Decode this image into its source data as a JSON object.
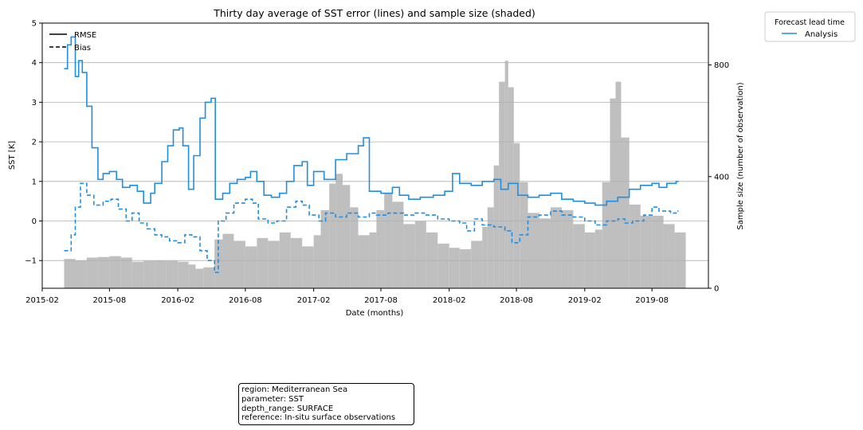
{
  "chart_data": {
    "type": "line",
    "title": "Thirty day average of SST error (lines) and sample size (shaded)",
    "xlabel": "Date (months)",
    "ylabel": "SST [K]",
    "y2label": "Sample size (number of observation)",
    "ylim": [
      -1.7,
      5.0
    ],
    "y2lim": [
      0,
      950
    ],
    "xlim": [
      "2015-02-01",
      "2019-12-31"
    ],
    "x_ticks": [
      "2015-02",
      "2015-08",
      "2016-02",
      "2016-08",
      "2017-02",
      "2017-08",
      "2018-02",
      "2018-08",
      "2019-02",
      "2019-08"
    ],
    "y_ticks": [
      "5",
      "4",
      "3",
      "2",
      "1",
      "0",
      "−1"
    ],
    "y2_ticks": [
      "800",
      "400",
      "0"
    ],
    "grid": "horizontal",
    "style_legend": [
      "RMSE",
      "Bias"
    ],
    "color_legend": {
      "title": "Forecast lead time",
      "entries": [
        "Analysis"
      ],
      "placement": "outside-top-right"
    },
    "colors": {
      "line": "#1f8fe6",
      "bars": "#bfbfbf",
      "grid": "#b0b0b0"
    },
    "series": [
      {
        "name": "RMSE",
        "legend_group": "Analysis",
        "style": "solid",
        "points": [
          [
            "2015-04-01",
            3.85
          ],
          [
            "2015-04-10",
            4.45
          ],
          [
            "2015-04-20",
            4.65
          ],
          [
            "2015-05-01",
            3.65
          ],
          [
            "2015-05-10",
            4.05
          ],
          [
            "2015-05-20",
            3.75
          ],
          [
            "2015-06-01",
            2.9
          ],
          [
            "2015-06-15",
            1.85
          ],
          [
            "2015-07-01",
            1.05
          ],
          [
            "2015-07-15",
            1.2
          ],
          [
            "2015-08-01",
            1.25
          ],
          [
            "2015-08-20",
            1.05
          ],
          [
            "2015-09-05",
            0.85
          ],
          [
            "2015-09-25",
            0.9
          ],
          [
            "2015-10-15",
            0.75
          ],
          [
            "2015-11-01",
            0.45
          ],
          [
            "2015-11-20",
            0.7
          ],
          [
            "2015-12-01",
            0.95
          ],
          [
            "2015-12-20",
            1.5
          ],
          [
            "2016-01-05",
            1.9
          ],
          [
            "2016-01-20",
            2.3
          ],
          [
            "2016-02-05",
            2.35
          ],
          [
            "2016-02-15",
            1.9
          ],
          [
            "2016-03-01",
            0.8
          ],
          [
            "2016-03-15",
            1.65
          ],
          [
            "2016-04-01",
            2.6
          ],
          [
            "2016-04-15",
            3.0
          ],
          [
            "2016-05-01",
            3.1
          ],
          [
            "2016-05-12",
            0.55
          ],
          [
            "2016-06-01",
            0.7
          ],
          [
            "2016-06-20",
            0.95
          ],
          [
            "2016-07-10",
            1.05
          ],
          [
            "2016-08-01",
            1.1
          ],
          [
            "2016-08-15",
            1.25
          ],
          [
            "2016-09-01",
            1.0
          ],
          [
            "2016-09-20",
            0.65
          ],
          [
            "2016-10-10",
            0.6
          ],
          [
            "2016-11-01",
            0.7
          ],
          [
            "2016-11-20",
            1.0
          ],
          [
            "2016-12-10",
            1.4
          ],
          [
            "2017-01-01",
            1.5
          ],
          [
            "2017-01-15",
            0.9
          ],
          [
            "2017-02-01",
            1.25
          ],
          [
            "2017-03-01",
            1.05
          ],
          [
            "2017-04-01",
            1.55
          ],
          [
            "2017-05-01",
            1.7
          ],
          [
            "2017-06-01",
            1.9
          ],
          [
            "2017-06-15",
            2.1
          ],
          [
            "2017-07-01",
            0.75
          ],
          [
            "2017-08-01",
            0.7
          ],
          [
            "2017-09-01",
            0.85
          ],
          [
            "2017-09-20",
            0.65
          ],
          [
            "2017-10-15",
            0.55
          ],
          [
            "2017-11-15",
            0.6
          ],
          [
            "2017-12-20",
            0.65
          ],
          [
            "2018-01-20",
            0.75
          ],
          [
            "2018-02-10",
            1.2
          ],
          [
            "2018-03-01",
            0.95
          ],
          [
            "2018-04-01",
            0.9
          ],
          [
            "2018-05-01",
            1.0
          ],
          [
            "2018-06-01",
            1.05
          ],
          [
            "2018-06-20",
            0.8
          ],
          [
            "2018-07-10",
            0.95
          ],
          [
            "2018-08-05",
            0.65
          ],
          [
            "2018-09-01",
            0.6
          ],
          [
            "2018-10-01",
            0.65
          ],
          [
            "2018-11-01",
            0.7
          ],
          [
            "2018-12-01",
            0.55
          ],
          [
            "2019-01-01",
            0.5
          ],
          [
            "2019-02-01",
            0.45
          ],
          [
            "2019-03-01",
            0.4
          ],
          [
            "2019-04-01",
            0.5
          ],
          [
            "2019-05-01",
            0.6
          ],
          [
            "2019-06-01",
            0.8
          ],
          [
            "2019-07-01",
            0.9
          ],
          [
            "2019-08-01",
            0.95
          ],
          [
            "2019-08-20",
            0.85
          ],
          [
            "2019-09-10",
            0.95
          ],
          [
            "2019-10-05",
            1.0
          ]
        ]
      },
      {
        "name": "Bias",
        "legend_group": "Analysis",
        "style": "dashed",
        "points": [
          [
            "2015-04-01",
            -0.75
          ],
          [
            "2015-04-20",
            -0.35
          ],
          [
            "2015-05-01",
            0.35
          ],
          [
            "2015-05-15",
            0.95
          ],
          [
            "2015-06-01",
            0.65
          ],
          [
            "2015-06-20",
            0.4
          ],
          [
            "2015-07-15",
            0.5
          ],
          [
            "2015-08-05",
            0.55
          ],
          [
            "2015-08-25",
            0.3
          ],
          [
            "2015-09-15",
            0.0
          ],
          [
            "2015-10-01",
            0.2
          ],
          [
            "2015-10-20",
            -0.05
          ],
          [
            "2015-11-10",
            -0.2
          ],
          [
            "2015-12-01",
            -0.35
          ],
          [
            "2015-12-20",
            -0.4
          ],
          [
            "2016-01-10",
            -0.5
          ],
          [
            "2016-02-01",
            -0.55
          ],
          [
            "2016-02-20",
            -0.35
          ],
          [
            "2016-03-10",
            -0.4
          ],
          [
            "2016-04-01",
            -0.75
          ],
          [
            "2016-04-20",
            -1.0
          ],
          [
            "2016-05-10",
            -1.3
          ],
          [
            "2016-05-20",
            0.0
          ],
          [
            "2016-06-10",
            0.2
          ],
          [
            "2016-07-01",
            0.45
          ],
          [
            "2016-08-01",
            0.55
          ],
          [
            "2016-08-20",
            0.45
          ],
          [
            "2016-09-05",
            0.05
          ],
          [
            "2016-10-01",
            -0.05
          ],
          [
            "2016-10-25",
            0.0
          ],
          [
            "2016-11-20",
            0.35
          ],
          [
            "2016-12-15",
            0.5
          ],
          [
            "2017-01-01",
            0.4
          ],
          [
            "2017-01-20",
            0.15
          ],
          [
            "2017-02-15",
            0.0
          ],
          [
            "2017-03-05",
            0.2
          ],
          [
            "2017-04-01",
            0.1
          ],
          [
            "2017-05-01",
            0.2
          ],
          [
            "2017-06-01",
            0.1
          ],
          [
            "2017-07-01",
            0.2
          ],
          [
            "2017-07-20",
            0.15
          ],
          [
            "2017-08-20",
            0.2
          ],
          [
            "2017-10-01",
            0.15
          ],
          [
            "2017-11-01",
            0.2
          ],
          [
            "2017-12-01",
            0.15
          ],
          [
            "2018-01-01",
            0.05
          ],
          [
            "2018-02-01",
            0.0
          ],
          [
            "2018-03-01",
            -0.05
          ],
          [
            "2018-03-20",
            -0.25
          ],
          [
            "2018-04-10",
            0.05
          ],
          [
            "2018-05-01",
            -0.1
          ],
          [
            "2018-06-01",
            -0.15
          ],
          [
            "2018-07-01",
            -0.25
          ],
          [
            "2018-07-20",
            -0.55
          ],
          [
            "2018-08-10",
            -0.35
          ],
          [
            "2018-09-01",
            0.1
          ],
          [
            "2018-10-01",
            0.15
          ],
          [
            "2018-11-01",
            0.25
          ],
          [
            "2018-12-01",
            0.15
          ],
          [
            "2019-01-01",
            0.1
          ],
          [
            "2019-02-01",
            0.0
          ],
          [
            "2019-03-01",
            -0.1
          ],
          [
            "2019-04-01",
            0.0
          ],
          [
            "2019-05-01",
            0.05
          ],
          [
            "2019-05-20",
            -0.05
          ],
          [
            "2019-06-10",
            0.0
          ],
          [
            "2019-07-10",
            0.15
          ],
          [
            "2019-08-01",
            0.35
          ],
          [
            "2019-08-20",
            0.25
          ],
          [
            "2019-09-20",
            0.2
          ],
          [
            "2019-10-05",
            0.25
          ]
        ]
      }
    ],
    "sample_size": {
      "axis": "right",
      "points": [
        [
          "2015-04-01",
          105
        ],
        [
          "2015-05-01",
          100
        ],
        [
          "2015-06-01",
          110
        ],
        [
          "2015-07-01",
          112
        ],
        [
          "2015-08-01",
          115
        ],
        [
          "2015-09-01",
          110
        ],
        [
          "2015-10-01",
          95
        ],
        [
          "2015-11-01",
          98
        ],
        [
          "2015-12-01",
          100
        ],
        [
          "2016-01-01",
          98
        ],
        [
          "2016-02-01",
          95
        ],
        [
          "2016-03-01",
          85
        ],
        [
          "2016-03-20",
          70
        ],
        [
          "2016-04-10",
          75
        ],
        [
          "2016-05-01",
          75
        ],
        [
          "2016-05-10",
          175
        ],
        [
          "2016-06-01",
          195
        ],
        [
          "2016-07-01",
          170
        ],
        [
          "2016-08-01",
          150
        ],
        [
          "2016-09-01",
          180
        ],
        [
          "2016-10-01",
          170
        ],
        [
          "2016-11-01",
          200
        ],
        [
          "2016-12-01",
          180
        ],
        [
          "2017-01-01",
          150
        ],
        [
          "2017-02-01",
          190
        ],
        [
          "2017-02-20",
          280
        ],
        [
          "2017-03-15",
          375
        ],
        [
          "2017-04-01",
          410
        ],
        [
          "2017-04-20",
          370
        ],
        [
          "2017-05-10",
          290
        ],
        [
          "2017-06-01",
          190
        ],
        [
          "2017-07-01",
          200
        ],
        [
          "2017-07-20",
          280
        ],
        [
          "2017-08-10",
          340
        ],
        [
          "2017-09-01",
          310
        ],
        [
          "2017-10-01",
          230
        ],
        [
          "2017-11-01",
          240
        ],
        [
          "2017-12-01",
          200
        ],
        [
          "2018-01-01",
          160
        ],
        [
          "2018-02-01",
          145
        ],
        [
          "2018-03-01",
          140
        ],
        [
          "2018-04-01",
          170
        ],
        [
          "2018-05-01",
          220
        ],
        [
          "2018-05-15",
          290
        ],
        [
          "2018-06-01",
          440
        ],
        [
          "2018-06-15",
          740
        ],
        [
          "2018-07-01",
          815
        ],
        [
          "2018-07-10",
          720
        ],
        [
          "2018-07-25",
          520
        ],
        [
          "2018-08-10",
          380
        ],
        [
          "2018-09-01",
          270
        ],
        [
          "2018-10-01",
          250
        ],
        [
          "2018-11-01",
          290
        ],
        [
          "2018-12-01",
          280
        ],
        [
          "2019-01-01",
          230
        ],
        [
          "2019-02-01",
          200
        ],
        [
          "2019-03-01",
          210
        ],
        [
          "2019-03-20",
          380
        ],
        [
          "2019-04-10",
          680
        ],
        [
          "2019-04-25",
          740
        ],
        [
          "2019-05-10",
          540
        ],
        [
          "2019-06-01",
          300
        ],
        [
          "2019-07-01",
          260
        ],
        [
          "2019-08-01",
          260
        ],
        [
          "2019-09-01",
          230
        ],
        [
          "2019-10-01",
          200
        ]
      ]
    }
  },
  "info_box": [
    "region: Mediterranean Sea",
    "parameter: SST",
    "depth_range: SURFACE",
    "reference: In-situ surface observations"
  ]
}
